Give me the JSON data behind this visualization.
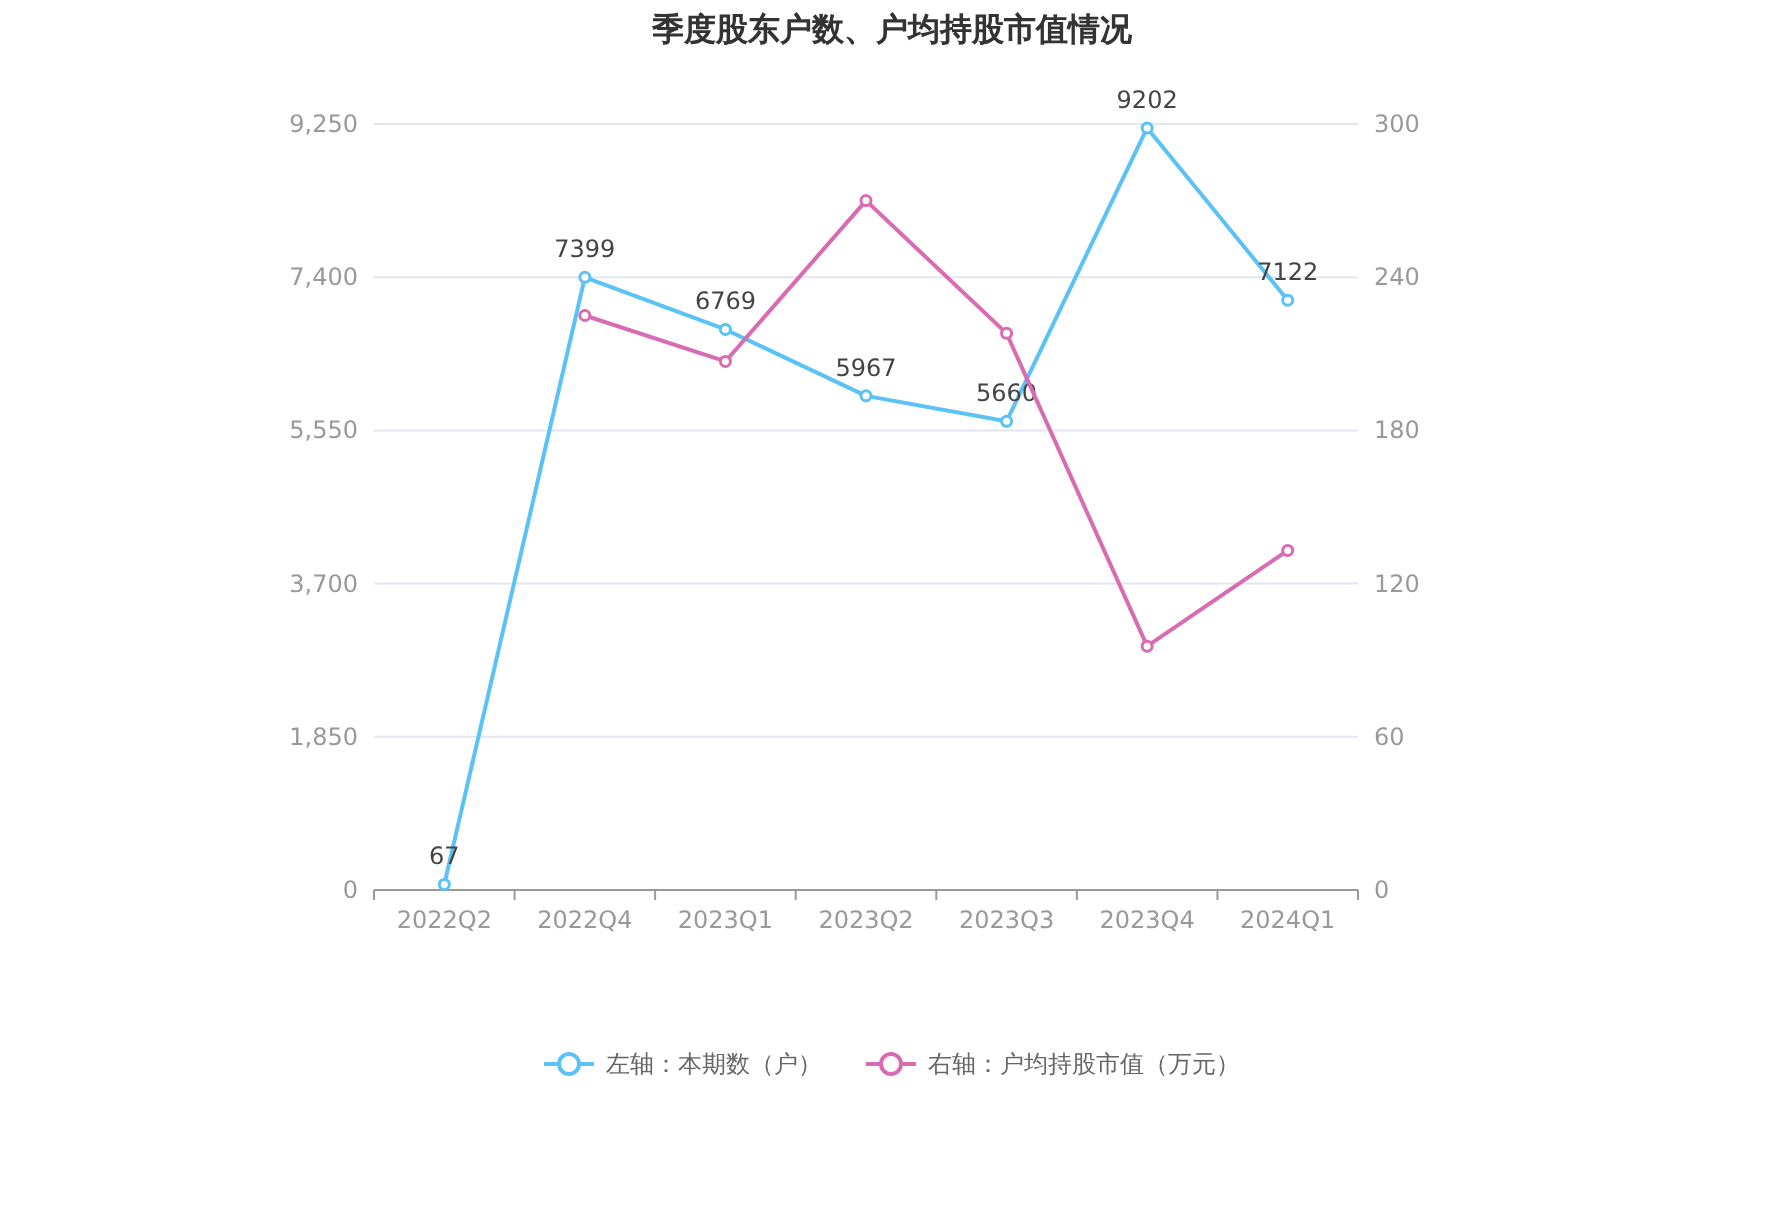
{
  "chart_data": {
    "type": "line",
    "title": "季度股东户数、户均持股市值情况",
    "categories": [
      "2022Q2",
      "2022Q4",
      "2023Q1",
      "2023Q2",
      "2023Q3",
      "2023Q4",
      "2024Q1"
    ],
    "series": [
      {
        "name": "左轴：本期数（户）",
        "color": "#5bc2f5",
        "values": [
          67,
          7399,
          6769,
          5967,
          5660,
          9202,
          7122
        ],
        "value_labels": [
          "67",
          "7399",
          "6769",
          "5967",
          "5660",
          "9202",
          "7122"
        ]
      },
      {
        "name": "右轴：户均持股市值（万元）",
        "color": "#d96bb2",
        "axis": "y2",
        "values": [
          null,
          225,
          207,
          270,
          218,
          95.5,
          133
        ]
      }
    ],
    "ylim": [
      0,
      9250
    ],
    "yticks": [
      0,
      {
        "value": 1850,
        "label": "1,850"
      },
      {
        "value": 3700,
        "label": "3,700"
      },
      {
        "value": 5550,
        "label": "5,550"
      },
      {
        "value": 7400,
        "label": "7,400"
      },
      {
        "value": 9250,
        "label": "9,250"
      }
    ],
    "y2lim": [
      0,
      300
    ],
    "y2ticks": [
      0,
      60,
      120,
      180,
      240,
      300
    ],
    "grid": "y",
    "legend": "bottom",
    "marker": "circle",
    "line_style": "solid"
  }
}
